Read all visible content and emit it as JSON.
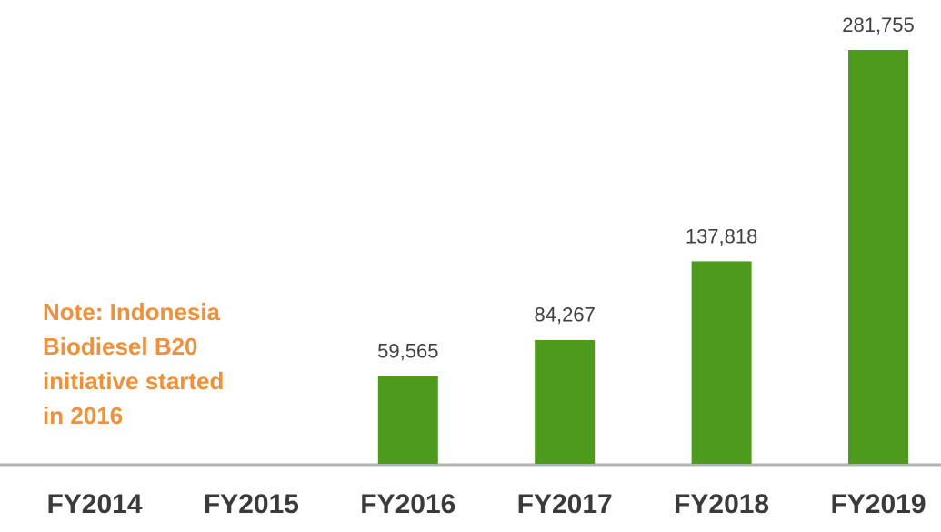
{
  "chart_data": {
    "type": "bar",
    "categories": [
      "FY2014",
      "FY2015",
      "FY2016",
      "FY2017",
      "FY2018",
      "FY2019"
    ],
    "values": [
      null,
      null,
      59565,
      84267,
      137818,
      281755
    ],
    "value_labels": [
      null,
      null,
      "59,565",
      "84,267",
      "137,818",
      "281,755"
    ],
    "color": "#4e9a1c",
    "annotation": [
      "Note: Indonesia",
      "Biodiesel B20",
      "initiative started",
      "in 2016"
    ]
  }
}
